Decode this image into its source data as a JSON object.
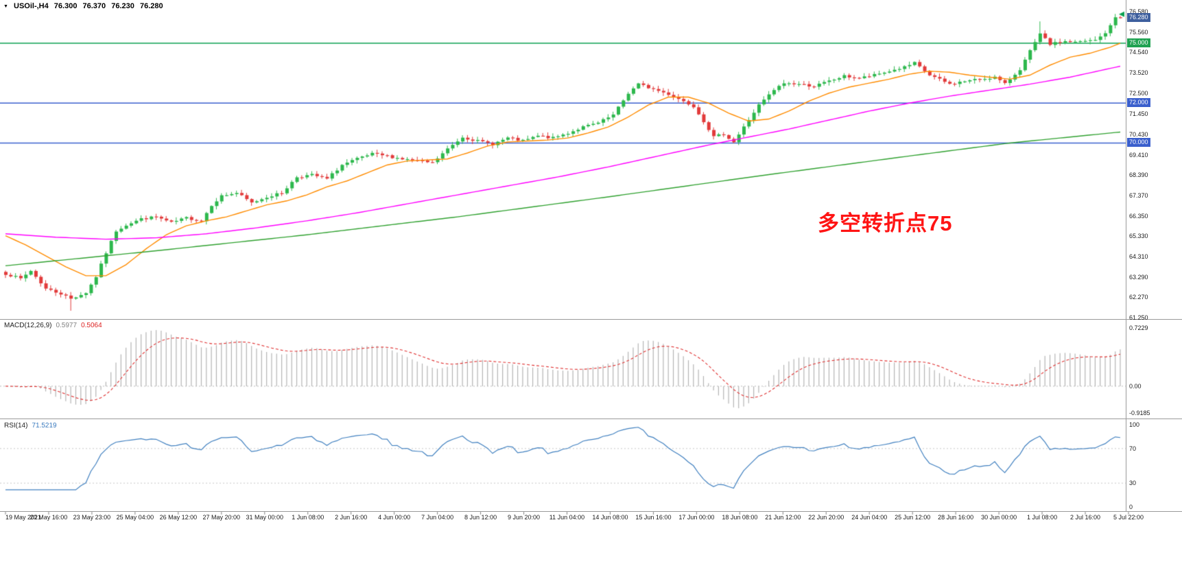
{
  "header": {
    "symbol_timeframe": "USOil-,H4",
    "symbol": "USOil-",
    "timeframe": "H4",
    "open": "76.300",
    "high": "76.370",
    "low": "76.230",
    "close": "76.280"
  },
  "main_chart": {
    "y_axis_ticks": [
      "76.580",
      "75.560",
      "74.540",
      "73.520",
      "72.500",
      "71.450",
      "70.430",
      "69.410",
      "68.390",
      "67.370",
      "66.350",
      "65.330",
      "64.310",
      "63.290",
      "62.270",
      "61.250"
    ],
    "price_tags": [
      {
        "label": "76.280",
        "bg": "#3e5f9e",
        "role": "last-price"
      },
      {
        "label": "75.000",
        "bg": "#1fa251",
        "role": "level"
      },
      {
        "label": "72.000",
        "bg": "#3a5fcd",
        "role": "level"
      },
      {
        "label": "70.000",
        "bg": "#3a5fcd",
        "role": "level"
      }
    ],
    "hlines": [
      {
        "price": 75.0,
        "color": "#0aa14f"
      },
      {
        "price": 72.0,
        "color": "#3a5fcd"
      },
      {
        "price": 70.0,
        "color": "#3a5fcd"
      }
    ],
    "annotation": {
      "text": "多空转折点75",
      "color": "#ff1414"
    }
  },
  "chart_data": {
    "type": "candlestick",
    "symbol": "USOil-",
    "timeframe": "H4",
    "title": "USOil-,H4 76.300 76.370 76.230 76.280",
    "candle_count": 223,
    "price_axis_range": [
      61.18,
      76.96
    ],
    "last_candle": {
      "open": 76.3,
      "high": 76.37,
      "low": 76.23,
      "close": 76.28
    },
    "up_color": "#2db84d",
    "down_color": "#e23a3a",
    "close_anchors": [
      [
        0,
        63.45
      ],
      [
        3,
        63.2
      ],
      [
        5,
        63.6
      ],
      [
        8,
        62.7
      ],
      [
        11,
        62.45
      ],
      [
        13,
        62.2
      ],
      [
        16,
        62.5
      ],
      [
        18,
        63.3
      ],
      [
        20,
        64.5
      ],
      [
        22,
        65.6
      ],
      [
        24,
        65.9
      ],
      [
        27,
        66.2
      ],
      [
        30,
        66.3
      ],
      [
        33,
        66.0
      ],
      [
        36,
        66.25
      ],
      [
        39,
        66.1
      ],
      [
        41,
        66.9
      ],
      [
        43,
        67.35
      ],
      [
        46,
        67.5
      ],
      [
        49,
        67.0
      ],
      [
        52,
        67.3
      ],
      [
        55,
        67.5
      ],
      [
        58,
        68.3
      ],
      [
        61,
        68.4
      ],
      [
        64,
        68.2
      ],
      [
        67,
        68.9
      ],
      [
        70,
        69.2
      ],
      [
        73,
        69.45
      ],
      [
        76,
        69.35
      ],
      [
        79,
        69.2
      ],
      [
        82,
        69.1
      ],
      [
        85,
        69.0
      ],
      [
        88,
        69.7
      ],
      [
        91,
        70.3
      ],
      [
        94,
        70.1
      ],
      [
        97,
        69.95
      ],
      [
        100,
        70.25
      ],
      [
        103,
        70.1
      ],
      [
        106,
        70.35
      ],
      [
        109,
        70.25
      ],
      [
        112,
        70.5
      ],
      [
        115,
        70.8
      ],
      [
        118,
        71.0
      ],
      [
        121,
        71.4
      ],
      [
        124,
        72.5
      ],
      [
        126,
        72.95
      ],
      [
        129,
        72.7
      ],
      [
        132,
        72.45
      ],
      [
        135,
        72.1
      ],
      [
        137,
        71.85
      ],
      [
        139,
        71.1
      ],
      [
        141,
        70.3
      ],
      [
        143,
        70.45
      ],
      [
        145,
        70.05
      ],
      [
        147,
        70.8
      ],
      [
        150,
        71.9
      ],
      [
        153,
        72.65
      ],
      [
        155,
        73.0
      ],
      [
        158,
        72.95
      ],
      [
        161,
        72.85
      ],
      [
        164,
        73.1
      ],
      [
        167,
        73.35
      ],
      [
        170,
        73.25
      ],
      [
        173,
        73.4
      ],
      [
        176,
        73.6
      ],
      [
        179,
        73.8
      ],
      [
        181,
        74.0
      ],
      [
        184,
        73.4
      ],
      [
        188,
        72.95
      ],
      [
        191,
        73.1
      ],
      [
        194,
        73.2
      ],
      [
        197,
        73.3
      ],
      [
        199,
        72.95
      ],
      [
        202,
        73.7
      ],
      [
        204,
        74.6
      ],
      [
        206,
        75.45
      ],
      [
        208,
        74.95
      ],
      [
        211,
        75.1
      ],
      [
        213,
        75.05
      ],
      [
        215,
        75.1
      ],
      [
        217,
        75.15
      ],
      [
        219,
        75.5
      ],
      [
        221,
        76.3
      ],
      [
        222,
        76.28
      ]
    ],
    "wick_overrides": [
      {
        "index": 13,
        "extra_low": 0.45
      },
      {
        "index": 206,
        "extra_high": 0.5
      }
    ],
    "moving_averages": [
      {
        "name": "ma-fast",
        "color": "#ff8c00",
        "points": [
          [
            0,
            65.35
          ],
          [
            4,
            64.9
          ],
          [
            8,
            64.35
          ],
          [
            12,
            63.8
          ],
          [
            16,
            63.35
          ],
          [
            20,
            63.35
          ],
          [
            24,
            63.9
          ],
          [
            28,
            64.7
          ],
          [
            32,
            65.4
          ],
          [
            36,
            65.85
          ],
          [
            40,
            66.1
          ],
          [
            44,
            66.3
          ],
          [
            48,
            66.6
          ],
          [
            52,
            66.9
          ],
          [
            56,
            67.1
          ],
          [
            60,
            67.4
          ],
          [
            64,
            67.8
          ],
          [
            68,
            68.1
          ],
          [
            72,
            68.5
          ],
          [
            76,
            68.9
          ],
          [
            80,
            69.1
          ],
          [
            84,
            69.15
          ],
          [
            88,
            69.2
          ],
          [
            92,
            69.5
          ],
          [
            96,
            69.85
          ],
          [
            100,
            70.05
          ],
          [
            104,
            70.1
          ],
          [
            108,
            70.15
          ],
          [
            112,
            70.25
          ],
          [
            116,
            70.5
          ],
          [
            120,
            70.8
          ],
          [
            124,
            71.3
          ],
          [
            128,
            71.9
          ],
          [
            132,
            72.3
          ],
          [
            136,
            72.3
          ],
          [
            140,
            72.0
          ],
          [
            144,
            71.5
          ],
          [
            148,
            71.1
          ],
          [
            152,
            71.2
          ],
          [
            156,
            71.6
          ],
          [
            160,
            72.1
          ],
          [
            164,
            72.5
          ],
          [
            168,
            72.8
          ],
          [
            172,
            73.0
          ],
          [
            176,
            73.2
          ],
          [
            180,
            73.45
          ],
          [
            184,
            73.6
          ],
          [
            188,
            73.55
          ],
          [
            192,
            73.4
          ],
          [
            196,
            73.3
          ],
          [
            200,
            73.2
          ],
          [
            204,
            73.4
          ],
          [
            208,
            73.9
          ],
          [
            212,
            74.3
          ],
          [
            216,
            74.5
          ],
          [
            220,
            74.8
          ],
          [
            222,
            75.0
          ]
        ]
      },
      {
        "name": "ma-mid",
        "color": "#ff00ff",
        "points": [
          [
            0,
            65.45
          ],
          [
            10,
            65.28
          ],
          [
            20,
            65.18
          ],
          [
            30,
            65.25
          ],
          [
            40,
            65.45
          ],
          [
            50,
            65.75
          ],
          [
            60,
            66.1
          ],
          [
            70,
            66.5
          ],
          [
            80,
            66.95
          ],
          [
            90,
            67.4
          ],
          [
            100,
            67.85
          ],
          [
            110,
            68.3
          ],
          [
            120,
            68.8
          ],
          [
            130,
            69.35
          ],
          [
            140,
            69.9
          ],
          [
            148,
            70.3
          ],
          [
            156,
            70.7
          ],
          [
            164,
            71.15
          ],
          [
            172,
            71.6
          ],
          [
            180,
            72.0
          ],
          [
            188,
            72.35
          ],
          [
            196,
            72.65
          ],
          [
            204,
            72.95
          ],
          [
            212,
            73.3
          ],
          [
            222,
            73.85
          ]
        ]
      },
      {
        "name": "ma-slow",
        "color": "#2fa12f",
        "points": [
          [
            0,
            63.85
          ],
          [
            30,
            64.6
          ],
          [
            60,
            65.4
          ],
          [
            90,
            66.3
          ],
          [
            120,
            67.3
          ],
          [
            150,
            68.35
          ],
          [
            180,
            69.35
          ],
          [
            200,
            70.0
          ],
          [
            222,
            70.55
          ]
        ]
      }
    ],
    "x_labels": [
      "19 May 2021",
      "20 May 16:00",
      "23 May 23:00",
      "25 May 04:00",
      "26 May 12:00",
      "27 May 20:00",
      "31 May 00:00",
      "1 Jun 08:00",
      "2 Jun 16:00",
      "4 Jun 00:00",
      "7 Jun 04:00",
      "8 Jun 12:00",
      "9 Jun 20:00",
      "11 Jun 04:00",
      "14 Jun 08:00",
      "15 Jun 16:00",
      "17 Jun 00:00",
      "18 Jun 08:00",
      "21 Jun 12:00",
      "22 Jun 20:00",
      "24 Jun 04:00",
      "25 Jun 12:00",
      "28 Jun 16:00",
      "30 Jun 00:00",
      "1 Jul 08:00",
      "2 Jul 16:00",
      "5 Jul 22:00"
    ],
    "indicators": [
      {
        "name": "MACD",
        "label": "MACD(12,26,9)",
        "params": [
          12,
          26,
          9
        ],
        "values": [
          "0.5977",
          "0.5064"
        ],
        "y_ticks": [
          "0.7229",
          "0.00",
          "-0.9185"
        ],
        "histogram_color": "#b4b4b4",
        "signal_color": "#e03030"
      },
      {
        "name": "RSI",
        "label": "RSI(14)",
        "period": 14,
        "value": "71.5219",
        "y_ticks": [
          "100",
          "70",
          "30",
          "0"
        ],
        "levels": [
          70,
          30
        ],
        "line_color": "#4080c0"
      }
    ]
  }
}
